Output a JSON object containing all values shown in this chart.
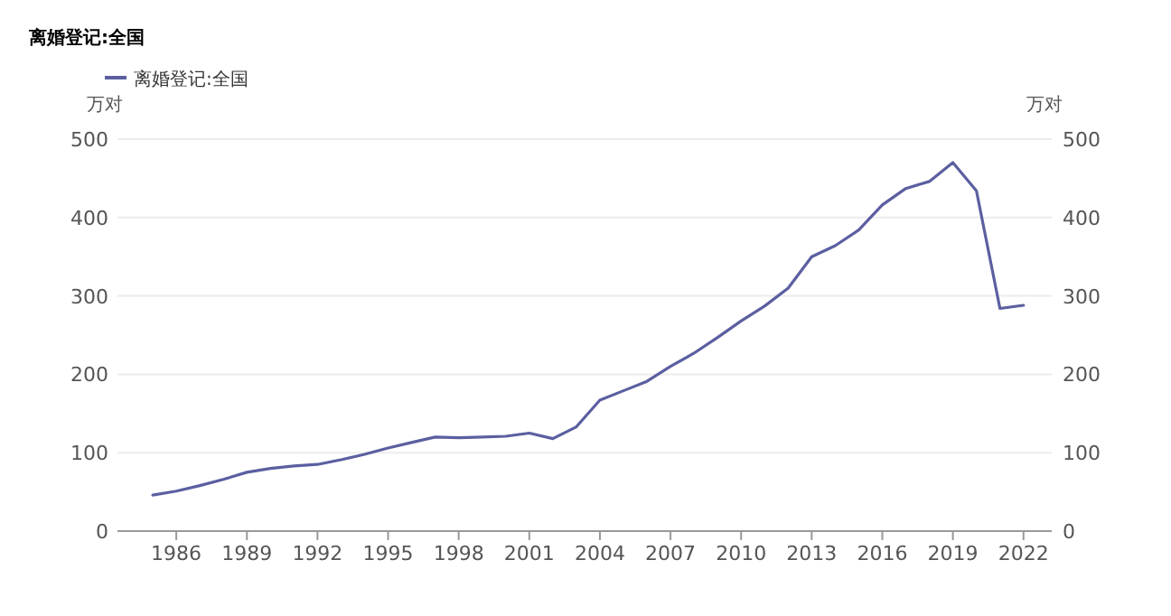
{
  "chart_data": {
    "type": "line",
    "title": "离婚登记:全国",
    "ylabel": "万对",
    "y2label": "万对",
    "x": [
      1985,
      1986,
      1987,
      1988,
      1989,
      1990,
      1991,
      1992,
      1993,
      1994,
      1995,
      1996,
      1997,
      1998,
      1999,
      2000,
      2001,
      2002,
      2003,
      2004,
      2005,
      2006,
      2007,
      2008,
      2009,
      2010,
      2011,
      2012,
      2013,
      2014,
      2015,
      2016,
      2017,
      2018,
      2019,
      2020,
      2021,
      2022
    ],
    "series": [
      {
        "name": "离婚登记:全国",
        "color": "#5b5fa0",
        "values": [
          46,
          51,
          58,
          66,
          75,
          80,
          83,
          85,
          91,
          98,
          106,
          113,
          120,
          119,
          120,
          121,
          125,
          118,
          133,
          167,
          179,
          191,
          210,
          227,
          247,
          268,
          287,
          310,
          350,
          364,
          384,
          416,
          437,
          446,
          470,
          434,
          284,
          288
        ]
      }
    ],
    "xlim": [
      1983.5,
      2023.2
    ],
    "xticks": [
      1986,
      1989,
      1992,
      1995,
      1998,
      2001,
      2004,
      2007,
      2010,
      2013,
      2016,
      2019,
      2022
    ],
    "ylim": [
      0,
      500
    ],
    "yticks": [
      0,
      100,
      200,
      300,
      400,
      500
    ],
    "y2lim": [
      0,
      500
    ],
    "y2ticks": [
      0,
      100,
      200,
      300,
      400,
      500
    ],
    "grid": "y",
    "legend": "top left",
    "marker": "none",
    "line_style": "solid"
  }
}
